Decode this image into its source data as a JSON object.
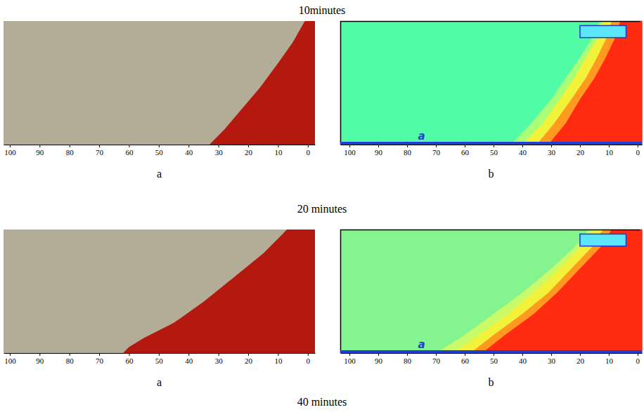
{
  "captions": [
    "10minutes",
    "20 minutes",
    "40 minutes"
  ],
  "chart_data": [
    {
      "type": "area",
      "label": "a",
      "color": "#b3ac97",
      "xlim": [
        102.1,
        -2.4
      ],
      "ylim": [
        0,
        41
      ],
      "xticks": [
        100,
        90,
        80,
        70,
        60,
        50,
        40,
        30,
        20,
        10,
        0
      ],
      "tick_labels": "x",
      "series": [
        {
          "color": "#b4190f",
          "x": [
            33,
            28,
            22,
            16,
            10,
            5,
            1
          ],
          "values": [
            0,
            5,
            12,
            19,
            27,
            34,
            41
          ]
        }
      ]
    },
    {
      "type": "area",
      "label": "b",
      "color": "#52fca6",
      "xlim": [
        103.2,
        -1.5
      ],
      "ylim": [
        0,
        41
      ],
      "xticks": [
        100,
        90,
        80,
        70,
        60,
        50,
        40,
        30,
        20,
        10,
        0
      ],
      "tick_labels": "x",
      "series": [
        {
          "color": "#a8ff78",
          "x": [
            44,
            37,
            30,
            25,
            20,
            16,
            13
          ],
          "values": [
            0,
            7,
            15,
            22,
            29,
            35,
            41
          ]
        },
        {
          "color": "#f2f23a",
          "x": [
            40,
            33,
            27,
            22,
            18,
            14,
            12
          ],
          "values": [
            0,
            7,
            15,
            22,
            29,
            35,
            41
          ]
        },
        {
          "color": "#ff9a20",
          "x": [
            35,
            29,
            23,
            18,
            14,
            11,
            9
          ],
          "values": [
            0,
            7,
            15,
            22,
            29,
            35,
            41
          ]
        },
        {
          "color": "#ff2a10",
          "x": [
            31,
            25,
            20,
            15,
            11,
            8,
            6
          ],
          "values": [
            0,
            7,
            15,
            22,
            29,
            35,
            41
          ]
        }
      ],
      "annotations": [
        {
          "text": "a",
          "x": 75
        }
      ],
      "injector": {
        "x": [
          20,
          4
        ],
        "y": [
          35.5,
          39.5
        ]
      }
    },
    {
      "type": "area",
      "label": "a",
      "color": "#b3ac97",
      "xlim": [
        102.1,
        -2.4
      ],
      "ylim": [
        0,
        41
      ],
      "xticks": [
        100,
        90,
        80,
        70,
        60,
        50,
        40,
        30,
        20,
        10,
        0
      ],
      "tick_labels": "x",
      "series": [
        {
          "color": "#b4190f",
          "x": [
            62,
            60,
            55,
            45,
            35,
            25,
            15,
            10,
            7
          ],
          "values": [
            0,
            2,
            5,
            10,
            17,
            25,
            33,
            38,
            41
          ]
        }
      ]
    },
    {
      "type": "area",
      "label": "b",
      "color": "#84f58e",
      "xlim": [
        103.2,
        -1.5
      ],
      "ylim": [
        0,
        41
      ],
      "xticks": [
        100,
        90,
        80,
        70,
        60,
        50,
        40,
        30,
        20,
        10,
        0
      ],
      "tick_labels": "x",
      "series": [
        {
          "color": "#c8fa6a",
          "x": [
            70,
            60,
            50,
            40,
            30,
            22,
            17
          ],
          "values": [
            0,
            6,
            13,
            20,
            28,
            35,
            41
          ]
        },
        {
          "color": "#f2f23a",
          "x": [
            64,
            55,
            45,
            35,
            26,
            19,
            15
          ],
          "values": [
            0,
            6,
            13,
            21,
            29,
            36,
            41
          ]
        },
        {
          "color": "#ff9a20",
          "x": [
            58,
            50,
            40,
            31,
            23,
            16,
            12
          ],
          "values": [
            0,
            6,
            13,
            20,
            28,
            35,
            41
          ]
        },
        {
          "color": "#ff2a10",
          "x": [
            54,
            46,
            36,
            28,
            20,
            13,
            9
          ],
          "values": [
            0,
            6,
            13,
            20,
            28,
            35,
            41
          ]
        }
      ],
      "annotations": [
        {
          "text": "a",
          "x": 75
        }
      ],
      "injector": {
        "x": [
          20,
          4
        ],
        "y": [
          35.5,
          39.5
        ]
      }
    }
  ]
}
